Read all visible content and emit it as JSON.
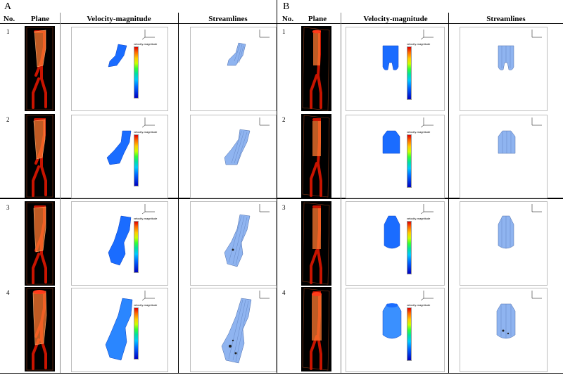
{
  "panels": [
    {
      "letter": "A",
      "headers": {
        "no": "No.",
        "plane": "Plane",
        "velocity": "Velocity-magnitude",
        "streamlines": "Streamlines"
      }
    },
    {
      "letter": "B",
      "headers": {
        "no": "No.",
        "plane": "Plane",
        "velocity": "Velocity-magnitude",
        "streamlines": "Streamlines"
      }
    }
  ],
  "rows": [
    "1",
    "2",
    "3",
    "4"
  ],
  "colorbar_title": "velocity-magnitude",
  "colors": {
    "plane_bg": "#000000",
    "vessel": "#c81400",
    "flow_blue": "#1a6cff",
    "stream_blue": "#8fb4f0"
  }
}
